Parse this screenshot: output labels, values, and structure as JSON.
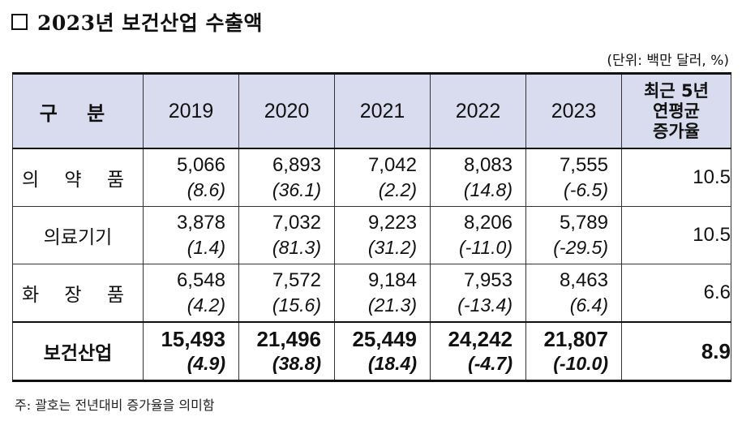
{
  "title": "2023년 보건산업 수출액",
  "unit": "(단위: 백만 달러, %)",
  "table": {
    "header": {
      "label": "구 분",
      "years": [
        "2019",
        "2020",
        "2021",
        "2022",
        "2023"
      ],
      "growth_lines": [
        "최근 5년",
        "연평균",
        "증가율"
      ]
    },
    "rows": [
      {
        "label": "의 약 품",
        "values": [
          "5,066",
          "6,893",
          "7,042",
          "8,083",
          "7,555"
        ],
        "pcts": [
          "(8.6)",
          "(36.1)",
          "(2.2)",
          "(14.8)",
          "(-6.5)"
        ],
        "growth": "10.5"
      },
      {
        "label": "의료기기",
        "values": [
          "3,878",
          "7,032",
          "9,223",
          "8,206",
          "5,789"
        ],
        "pcts": [
          "(1.4)",
          "(81.3)",
          "(31.2)",
          "(-11.0)",
          "(-29.5)"
        ],
        "growth": "10.5"
      },
      {
        "label": "화 장 품",
        "values": [
          "6,548",
          "7,572",
          "9,184",
          "7,953",
          "8,463"
        ],
        "pcts": [
          "(4.2)",
          "(15.6)",
          "(21.3)",
          "(-13.4)",
          "(6.4)"
        ],
        "growth": "6.6"
      }
    ],
    "total": {
      "label": "보건산업",
      "values": [
        "15,493",
        "21,496",
        "25,449",
        "24,242",
        "21,807"
      ],
      "pcts": [
        "(4.9)",
        "(38.8)",
        "(18.4)",
        "(-4.7)",
        "(-10.0)"
      ],
      "growth": "8.9"
    }
  },
  "note": "주: 괄호는 전년대비 증가율을 의미함"
}
